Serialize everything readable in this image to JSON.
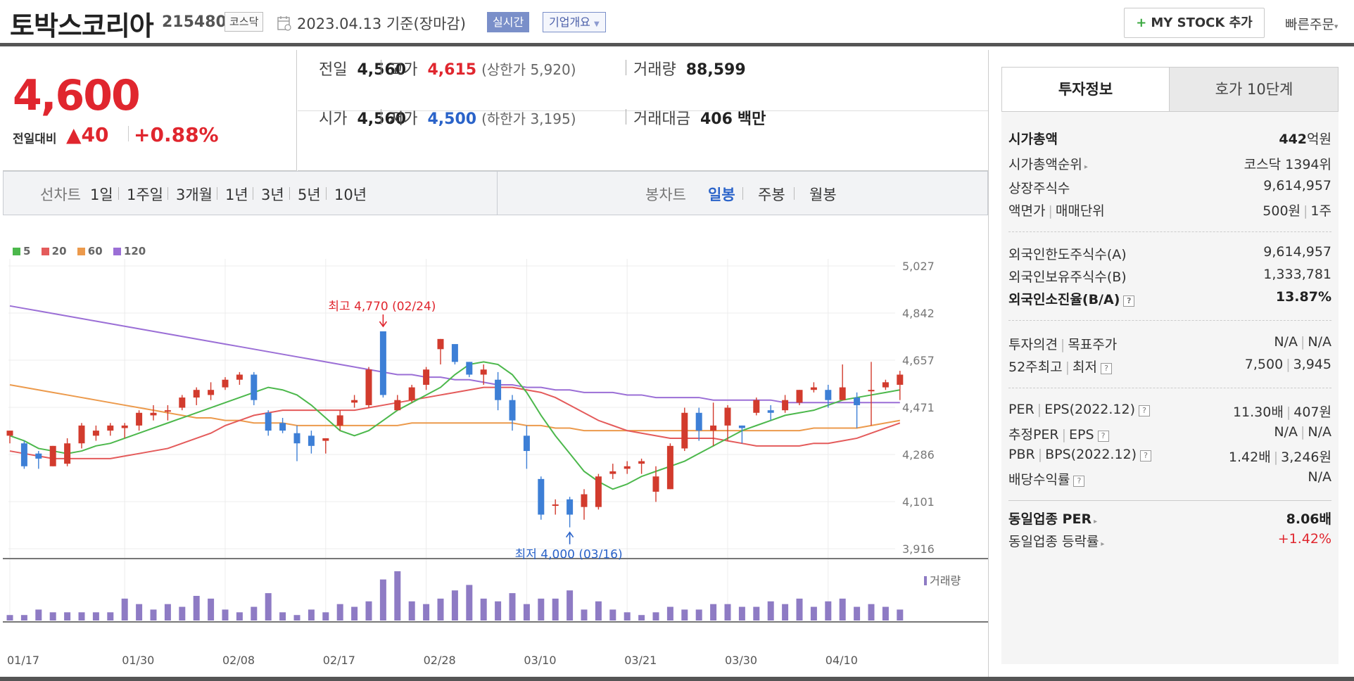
{
  "header": {
    "company_name": "토박스코리아",
    "stock_code": "215480",
    "market_badge": "코스닥",
    "date_text": "2023.04.13 기준(장마감)",
    "realtime_button": "실시간",
    "company_overview_button": "기업개요",
    "mystock_button": "MY STOCK 추가",
    "quick_order_button": "빠른주문"
  },
  "price": {
    "current": "4,600",
    "change_label": "전일대비",
    "change_amount": "▲40",
    "change_percent": "+0.88%"
  },
  "summary": {
    "prev_close_label": "전일",
    "prev_close": "4,560",
    "high_label": "고가",
    "high": "4,615",
    "upper_limit": "(상한가 5,920)",
    "volume_label": "거래량",
    "volume": "88,599",
    "open_label": "시가",
    "open": "4,560",
    "low_label": "저가",
    "low": "4,500",
    "lower_limit": "(하한가 3,195)",
    "trade_value_label": "거래대금",
    "trade_value": "406",
    "trade_value_unit": "백만"
  },
  "chart_tabs": {
    "line_chart_label": "선차트",
    "line_periods": [
      "1일",
      "1주일",
      "3개월",
      "1년",
      "3년",
      "5년",
      "10년"
    ],
    "candle_chart_label": "봉차트",
    "candle_periods": [
      "일봉",
      "주봉",
      "월봉"
    ],
    "active_candle_period": "일봉"
  },
  "chart_data": {
    "type": "candlestick",
    "legend": [
      {
        "name": "5",
        "color": "#4cb84c"
      },
      {
        "name": "20",
        "color": "#e45b5b"
      },
      {
        "name": "60",
        "color": "#ec9a4c"
      },
      {
        "name": "120",
        "color": "#9b6fd6"
      }
    ],
    "y_ticks": [
      "5,027",
      "4,842",
      "4,657",
      "4,471",
      "4,286",
      "4,101",
      "3,916"
    ],
    "ylim": [
      3916,
      5027
    ],
    "x_ticks": [
      {
        "label": "01/17",
        "index": 0
      },
      {
        "label": "01/30",
        "index": 8
      },
      {
        "label": "02/08",
        "index": 15
      },
      {
        "label": "02/17",
        "index": 22
      },
      {
        "label": "02/28",
        "index": 29
      },
      {
        "label": "03/10",
        "index": 36
      },
      {
        "label": "03/21",
        "index": 43
      },
      {
        "label": "03/30",
        "index": 50
      },
      {
        "label": "04/10",
        "index": 57
      }
    ],
    "max_annotation": "최고 4,770 (02/24)",
    "min_annotation": "최저 4,000 (03/16)",
    "volume_legend": "거래량",
    "candles": [
      [
        4360,
        4380,
        4330,
        4360
      ],
      [
        4330,
        4240,
        4340,
        4230
      ],
      [
        4290,
        4270,
        4300,
        4230
      ],
      [
        4240,
        4320,
        4320,
        4240
      ],
      [
        4250,
        4330,
        4350,
        4240
      ],
      [
        4330,
        4400,
        4410,
        4310
      ],
      [
        4360,
        4380,
        4400,
        4340
      ],
      [
        4380,
        4400,
        4410,
        4360
      ],
      [
        4390,
        4400,
        4410,
        4350
      ],
      [
        4400,
        4450,
        4460,
        4380
      ],
      [
        4440,
        4450,
        4480,
        4420
      ],
      [
        4460,
        4460,
        4480,
        4420
      ],
      [
        4470,
        4510,
        4520,
        4460
      ],
      [
        4510,
        4540,
        4550,
        4480
      ],
      [
        4520,
        4540,
        4570,
        4500
      ],
      [
        4550,
        4580,
        4590,
        4540
      ],
      [
        4580,
        4600,
        4610,
        4560
      ],
      [
        4600,
        4500,
        4610,
        4480
      ],
      [
        4450,
        4380,
        4460,
        4360
      ],
      [
        4410,
        4380,
        4430,
        4370
      ],
      [
        4370,
        4330,
        4400,
        4260
      ],
      [
        4360,
        4320,
        4380,
        4290
      ],
      [
        4340,
        4350,
        4350,
        4290
      ],
      [
        4400,
        4440,
        4460,
        4380
      ],
      [
        4490,
        4500,
        4520,
        4470
      ],
      [
        4480,
        4620,
        4630,
        4470
      ],
      [
        4770,
        4520,
        4770,
        4510
      ],
      [
        4460,
        4500,
        4520,
        4460
      ],
      [
        4500,
        4550,
        4560,
        4490
      ],
      [
        4560,
        4620,
        4630,
        4540
      ],
      [
        4700,
        4740,
        4740,
        4640
      ],
      [
        4720,
        4650,
        4700,
        4640
      ],
      [
        4650,
        4600,
        4650,
        4590
      ],
      [
        4600,
        4620,
        4640,
        4560
      ],
      [
        4580,
        4500,
        4610,
        4460
      ],
      [
        4500,
        4420,
        4520,
        4380
      ],
      [
        4360,
        4300,
        4400,
        4230
      ],
      [
        4190,
        4050,
        4200,
        4030
      ],
      [
        4090,
        4090,
        4110,
        4050
      ],
      [
        4110,
        4050,
        4120,
        4000
      ],
      [
        4080,
        4130,
        4150,
        4030
      ],
      [
        4080,
        4200,
        4210,
        4070
      ],
      [
        4210,
        4220,
        4250,
        4190
      ],
      [
        4230,
        4240,
        4260,
        4210
      ],
      [
        4250,
        4260,
        4270,
        4210
      ],
      [
        4140,
        4200,
        4240,
        4100
      ],
      [
        4150,
        4320,
        4330,
        4150
      ],
      [
        4310,
        4450,
        4470,
        4300
      ],
      [
        4450,
        4380,
        4470,
        4340
      ],
      [
        4380,
        4400,
        4490,
        4320
      ],
      [
        4400,
        4470,
        4480,
        4340
      ],
      [
        4400,
        4390,
        4400,
        4330
      ],
      [
        4450,
        4500,
        4510,
        4440
      ],
      [
        4460,
        4450,
        4480,
        4420
      ],
      [
        4460,
        4500,
        4520,
        4450
      ],
      [
        4490,
        4540,
        4540,
        4480
      ],
      [
        4540,
        4550,
        4570,
        4530
      ],
      [
        4540,
        4500,
        4560,
        4470
      ],
      [
        4500,
        4550,
        4640,
        4500
      ],
      [
        4510,
        4480,
        4530,
        4390
      ],
      [
        4540,
        4540,
        4650,
        4400
      ],
      [
        4550,
        4570,
        4580,
        4540
      ],
      [
        4560,
        4600,
        4615,
        4500
      ]
    ],
    "volume_levels": [
      2,
      2,
      4,
      3,
      3,
      3,
      3,
      3,
      8,
      6,
      4,
      6,
      5,
      9,
      8,
      4,
      3,
      5,
      10,
      3,
      2,
      4,
      3,
      6,
      5,
      7,
      15,
      18,
      7,
      6,
      8,
      11,
      13,
      8,
      7,
      10,
      6,
      8,
      8,
      11,
      4,
      7,
      4,
      3,
      2,
      3,
      5,
      4,
      4,
      6,
      6,
      5,
      5,
      7,
      6,
      8,
      5,
      7,
      8,
      5,
      6,
      5,
      4
    ],
    "ma5": [
      4360,
      4340,
      4310,
      4300,
      4290,
      4300,
      4320,
      4330,
      4350,
      4370,
      4390,
      4410,
      4430,
      4450,
      4470,
      4490,
      4510,
      4530,
      4550,
      4540,
      4520,
      4480,
      4430,
      4380,
      4360,
      4380,
      4420,
      4460,
      4490,
      4520,
      4550,
      4600,
      4640,
      4650,
      4640,
      4600,
      4530,
      4440,
      4360,
      4290,
      4220,
      4180,
      4150,
      4170,
      4200,
      4220,
      4240,
      4260,
      4290,
      4320,
      4350,
      4380,
      4400,
      4420,
      4440,
      4450,
      4460,
      4480,
      4500,
      4510,
      4520,
      4530,
      4540
    ],
    "ma20": [
      4300,
      4290,
      4280,
      4270,
      4270,
      4270,
      4270,
      4270,
      4280,
      4290,
      4300,
      4310,
      4330,
      4350,
      4370,
      4400,
      4420,
      4440,
      4450,
      4460,
      4460,
      4460,
      4460,
      4460,
      4460,
      4470,
      4480,
      4490,
      4500,
      4510,
      4520,
      4530,
      4540,
      4550,
      4550,
      4550,
      4540,
      4530,
      4510,
      4480,
      4450,
      4420,
      4400,
      4380,
      4370,
      4360,
      4350,
      4350,
      4350,
      4350,
      4340,
      4330,
      4320,
      4320,
      4320,
      4320,
      4330,
      4330,
      4340,
      4350,
      4370,
      4390,
      4410
    ],
    "ma60": [
      4560,
      4550,
      4540,
      4530,
      4520,
      4510,
      4500,
      4490,
      4480,
      4470,
      4460,
      4450,
      4440,
      4430,
      4430,
      4420,
      4420,
      4410,
      4410,
      4410,
      4400,
      4400,
      4400,
      4400,
      4400,
      4400,
      4400,
      4400,
      4410,
      4410,
      4410,
      4410,
      4410,
      4410,
      4410,
      4410,
      4400,
      4400,
      4390,
      4390,
      4380,
      4380,
      4380,
      4380,
      4380,
      4380,
      4380,
      4380,
      4380,
      4380,
      4380,
      4380,
      4380,
      4380,
      4380,
      4380,
      4390,
      4390,
      4390,
      4390,
      4400,
      4410,
      4420
    ],
    "ma120": [
      4870,
      4860,
      4850,
      4840,
      4830,
      4820,
      4810,
      4800,
      4790,
      4780,
      4770,
      4760,
      4750,
      4740,
      4730,
      4720,
      4710,
      4700,
      4690,
      4680,
      4670,
      4660,
      4650,
      4640,
      4630,
      4620,
      4610,
      4600,
      4600,
      4590,
      4590,
      4580,
      4580,
      4570,
      4560,
      4560,
      4550,
      4550,
      4540,
      4540,
      4530,
      4530,
      4530,
      4520,
      4520,
      4510,
      4510,
      4510,
      4510,
      4500,
      4500,
      4500,
      4500,
      4500,
      4490,
      4490,
      4490,
      4490,
      4490,
      4490,
      4490,
      4490,
      4490
    ]
  },
  "sidebar": {
    "tab_active": "투자정보",
    "tab_inactive": "호가 10단계",
    "market_cap_label": "시가총액",
    "market_cap_value": "442",
    "market_cap_unit": "억원",
    "market_cap_rank_label": "시가총액순위",
    "market_cap_rank_value": "코스닥 1394위",
    "listed_shares_label": "상장주식수",
    "listed_shares_value": "9,614,957",
    "par_value_label": "액면가",
    "trade_unit_label": "매매단위",
    "par_value": "500원",
    "trade_unit": "1주",
    "foreign_limit_label": "외국인한도주식수(A)",
    "foreign_limit_value": "9,614,957",
    "foreign_holding_label": "외국인보유주식수(B)",
    "foreign_holding_value": "1,333,781",
    "foreign_ratio_label": "외국인소진율(B/A)",
    "foreign_ratio_value": "13.87%",
    "opinion_label": "투자의견",
    "target_price_label": "목표주가",
    "opinion_value": "N/A",
    "target_price_value": "N/A",
    "week52_high_label": "52주최고",
    "week52_low_label": "최저",
    "week52_high": "7,500",
    "week52_low": "3,945",
    "per_label": "PER",
    "eps_label": "EPS(2022.12)",
    "per_value": "11.30배",
    "eps_value": "407원",
    "est_per_label": "추정PER",
    "est_eps_label": "EPS",
    "est_per_value": "N/A",
    "est_eps_value": "N/A",
    "pbr_label": "PBR",
    "bps_label": "BPS(2022.12)",
    "pbr_value": "1.42배",
    "bps_value": "3,246원",
    "dividend_label": "배당수익률",
    "dividend_value": "N/A",
    "sector_per_label": "동일업종 PER",
    "sector_per_value": "8.06배",
    "sector_change_label": "동일업종 등락률",
    "sector_change_value": "+1.42%"
  },
  "colors": {
    "up": "#e0262e",
    "down": "#2a63c9",
    "candle_up": "#d23b2d",
    "candle_down": "#3d7fd6",
    "volume": "#8e7bc4",
    "badge": "#7a8fc9"
  }
}
